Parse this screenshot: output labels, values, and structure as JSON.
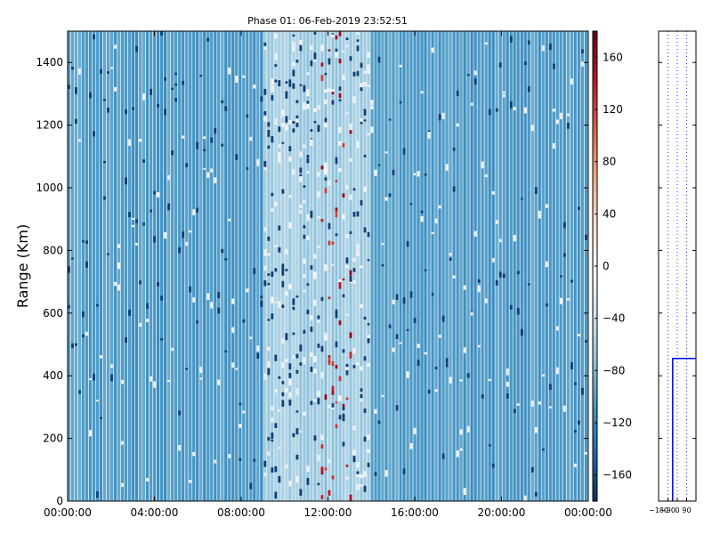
{
  "chart_data": [
    {
      "type": "heatmap",
      "title": "Phase 01: 06-Feb-2019 23:52:51",
      "xlabel": "",
      "ylabel": "Range (Km)",
      "x_ticks": [
        "00:00:00",
        "04:00:00",
        "08:00:00",
        "12:00:00",
        "16:00:00",
        "20:00:00",
        "00:00:00"
      ],
      "x_range_hours": [
        0,
        24
      ],
      "y_ticks": [
        0,
        200,
        400,
        600,
        800,
        1000,
        1200,
        1400
      ],
      "ylim": [
        0,
        1500
      ],
      "colormap": "RdBu_r",
      "value_range": [
        -180,
        180
      ],
      "colorbar_ticks": [
        -160,
        -120,
        -80,
        -40,
        0,
        40,
        80,
        120,
        160
      ],
      "dominant_value_approx": -100,
      "lighter_band_hours": [
        9,
        14
      ],
      "hot_spot_hours": [
        11.7,
        13.1
      ],
      "grid": false
    },
    {
      "type": "line",
      "xlim": [
        -180,
        180
      ],
      "x_ticks": [
        "-180",
        "-90",
        "0",
        "90"
      ],
      "ylim": [
        0,
        1500
      ],
      "vertical_dotted_lines_at": [
        -180,
        -90,
        0,
        90
      ],
      "series": [
        {
          "color": "#0000ff",
          "x": [
            -45,
            -45,
            180
          ],
          "y": [
            0,
            455,
            455
          ]
        }
      ]
    }
  ]
}
